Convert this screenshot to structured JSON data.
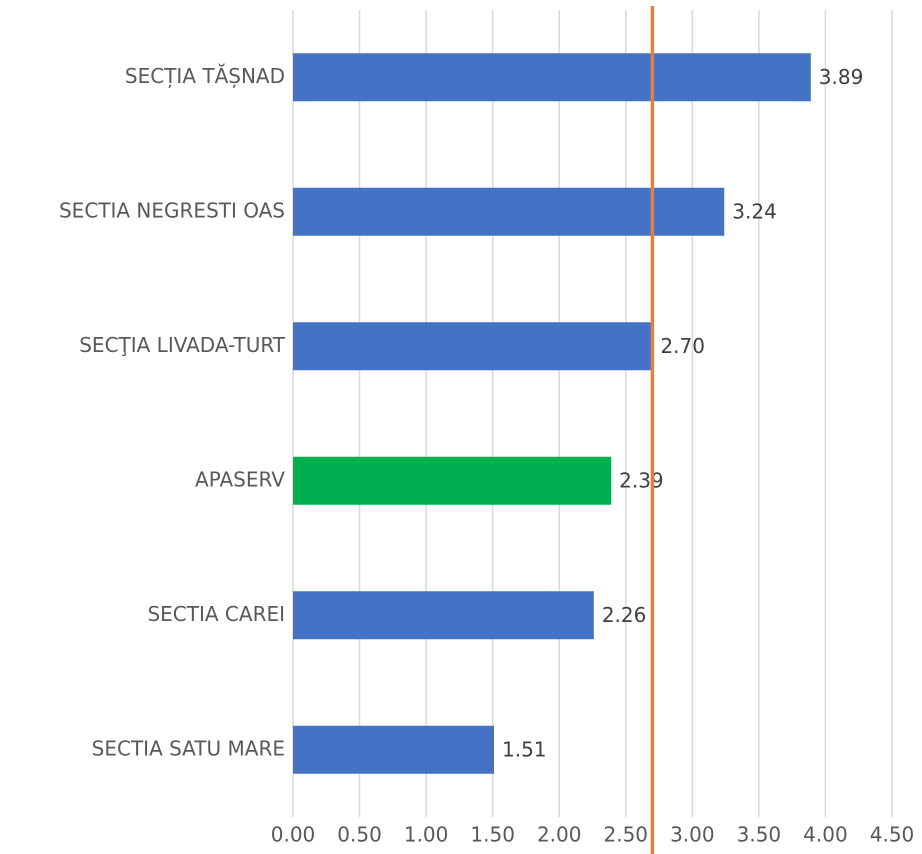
{
  "chart_data": {
    "type": "barh",
    "categories": [
      "SECȚIA TĂȘNAD",
      "SECTIA NEGRESTI OAS",
      "SECŢIA LIVADA-TURT",
      "APASERV",
      "SECTIA CAREI",
      "SECTIA SATU MARE"
    ],
    "values": [
      3.89,
      3.24,
      2.7,
      2.39,
      2.26,
      1.51
    ],
    "value_labels": [
      "3.89",
      "3.24",
      "2.70",
      "2.39",
      "2.26",
      "1.51"
    ],
    "colors": [
      "#4472c4",
      "#4472c4",
      "#4472c4",
      "#00b050",
      "#4472c4",
      "#4472c4"
    ],
    "xlim": [
      0,
      4.5
    ],
    "xticks": [
      {
        "value": 0,
        "label": "0.00"
      },
      {
        "value": 0.5,
        "label": "0.50"
      },
      {
        "value": 1,
        "label": "1.00"
      },
      {
        "value": 1.5,
        "label": "1.50"
      },
      {
        "value": 2,
        "label": "2.00"
      },
      {
        "value": 2.5,
        "label": "2.50"
      },
      {
        "value": 3,
        "label": "3.00"
      },
      {
        "value": 3.5,
        "label": "3.50"
      },
      {
        "value": 4,
        "label": "4.00"
      },
      {
        "value": 4.5,
        "label": "4.50"
      }
    ],
    "grid": true,
    "reference_line": {
      "value": 2.7,
      "color": "#ed7d31"
    }
  }
}
